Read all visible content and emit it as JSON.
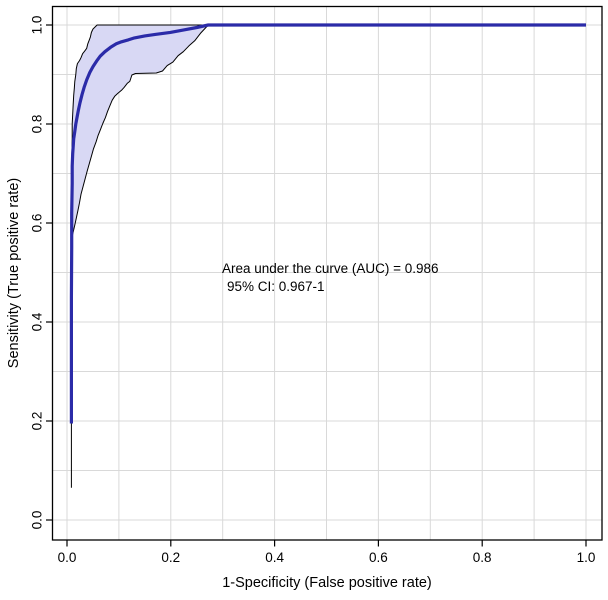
{
  "chart_data": {
    "type": "line",
    "title": "",
    "xlabel": "1-Specificity (False positive rate)",
    "ylabel": "Sensitivity (True positive rate)",
    "xlim": [
      0,
      1
    ],
    "ylim": [
      0,
      1
    ],
    "x_ticks": [
      "0.0",
      "0.2",
      "0.4",
      "0.6",
      "0.8",
      "1.0"
    ],
    "y_ticks": [
      "0.0",
      "0.2",
      "0.4",
      "0.6",
      "0.8",
      "1.0"
    ],
    "grid": {
      "on": true,
      "step": 0.1,
      "color": "#d9d9d9"
    },
    "legend": null,
    "annotation": {
      "line1": "Area under the curve (AUC) = 0.986",
      "line2": "95% CI: 0.967-1"
    },
    "auc": 0.986,
    "ci_low": 0.967,
    "ci_high": 1,
    "band": {
      "fill": "#d8d8f4",
      "edge_color": "#000000",
      "edge_width": 1
    },
    "series": [
      {
        "name": "ROC curve",
        "role": "roc",
        "color": "#2b2ba8",
        "width": 3.2,
        "points": [
          [
            0.0085,
            0.195
          ],
          [
            0.0085,
            0.45
          ],
          [
            0.009,
            0.55
          ],
          [
            0.009,
            0.62
          ],
          [
            0.01,
            0.68
          ],
          [
            0.01,
            0.715
          ],
          [
            0.011,
            0.74
          ],
          [
            0.012,
            0.755
          ],
          [
            0.013,
            0.77
          ],
          [
            0.015,
            0.785
          ],
          [
            0.017,
            0.8
          ],
          [
            0.019,
            0.812
          ],
          [
            0.022,
            0.828
          ],
          [
            0.025,
            0.843
          ],
          [
            0.029,
            0.86
          ],
          [
            0.033,
            0.874
          ],
          [
            0.038,
            0.889
          ],
          [
            0.044,
            0.904
          ],
          [
            0.05,
            0.916
          ],
          [
            0.057,
            0.927
          ],
          [
            0.064,
            0.937
          ],
          [
            0.073,
            0.946
          ],
          [
            0.084,
            0.955
          ],
          [
            0.095,
            0.962
          ],
          [
            0.105,
            0.966
          ],
          [
            0.118,
            0.97
          ],
          [
            0.13,
            0.974
          ],
          [
            0.15,
            0.978
          ],
          [
            0.17,
            0.981
          ],
          [
            0.199,
            0.985
          ],
          [
            0.225,
            0.99
          ],
          [
            0.25,
            0.995
          ],
          [
            0.272,
            1.0
          ],
          [
            1.0,
            1.0
          ]
        ]
      },
      {
        "name": "CI upper bound",
        "role": "ci-upper",
        "color": "#000000",
        "width": 1,
        "points": [
          [
            0.0085,
            0.566
          ],
          [
            0.009,
            0.64
          ],
          [
            0.009,
            0.7
          ],
          [
            0.0095,
            0.74
          ],
          [
            0.01,
            0.77
          ],
          [
            0.01,
            0.8
          ],
          [
            0.011,
            0.82
          ],
          [
            0.012,
            0.84
          ],
          [
            0.013,
            0.858
          ],
          [
            0.014,
            0.872
          ],
          [
            0.015,
            0.886
          ],
          [
            0.017,
            0.9
          ],
          [
            0.018,
            0.912
          ],
          [
            0.02,
            0.922
          ],
          [
            0.024,
            0.928
          ],
          [
            0.027,
            0.934
          ],
          [
            0.03,
            0.942
          ],
          [
            0.034,
            0.947
          ],
          [
            0.038,
            0.953
          ],
          [
            0.04,
            0.962
          ],
          [
            0.043,
            0.97
          ],
          [
            0.045,
            0.976
          ],
          [
            0.047,
            0.985
          ],
          [
            0.05,
            0.992
          ],
          [
            0.058,
            1.0
          ]
        ]
      },
      {
        "name": "CI lower bound",
        "role": "ci-lower",
        "color": "#000000",
        "width": 1,
        "points": [
          [
            0.0085,
            0.566
          ],
          [
            0.012,
            0.582
          ],
          [
            0.015,
            0.596
          ],
          [
            0.018,
            0.61
          ],
          [
            0.021,
            0.625
          ],
          [
            0.024,
            0.641
          ],
          [
            0.027,
            0.658
          ],
          [
            0.031,
            0.674
          ],
          [
            0.035,
            0.69
          ],
          [
            0.039,
            0.705
          ],
          [
            0.043,
            0.72
          ],
          [
            0.047,
            0.735
          ],
          [
            0.051,
            0.75
          ],
          [
            0.056,
            0.764
          ],
          [
            0.06,
            0.777
          ],
          [
            0.065,
            0.79
          ],
          [
            0.069,
            0.801
          ],
          [
            0.074,
            0.813
          ],
          [
            0.078,
            0.825
          ],
          [
            0.083,
            0.838
          ],
          [
            0.087,
            0.848
          ],
          [
            0.092,
            0.856
          ],
          [
            0.098,
            0.862
          ],
          [
            0.105,
            0.868
          ],
          [
            0.11,
            0.874
          ],
          [
            0.116,
            0.882
          ],
          [
            0.121,
            0.886
          ],
          [
            0.125,
            0.899
          ],
          [
            0.132,
            0.902
          ],
          [
            0.172,
            0.903
          ],
          [
            0.184,
            0.907
          ],
          [
            0.193,
            0.918
          ],
          [
            0.204,
            0.925
          ],
          [
            0.214,
            0.938
          ],
          [
            0.224,
            0.946
          ],
          [
            0.235,
            0.958
          ],
          [
            0.246,
            0.968
          ],
          [
            0.257,
            0.983
          ],
          [
            0.265,
            0.992
          ],
          [
            0.272,
            1.0
          ]
        ]
      },
      {
        "name": "lower tail",
        "role": "tail",
        "color": "#000000",
        "width": 1,
        "points": [
          [
            0.0085,
            0.065
          ],
          [
            0.0085,
            0.6
          ]
        ]
      }
    ]
  },
  "colors": {
    "roc_line": "#2b2ba8",
    "band_fill": "#d8d8f4",
    "grid": "#d9d9d9",
    "axis": "#000000",
    "text": "#000000",
    "background": "#ffffff"
  }
}
